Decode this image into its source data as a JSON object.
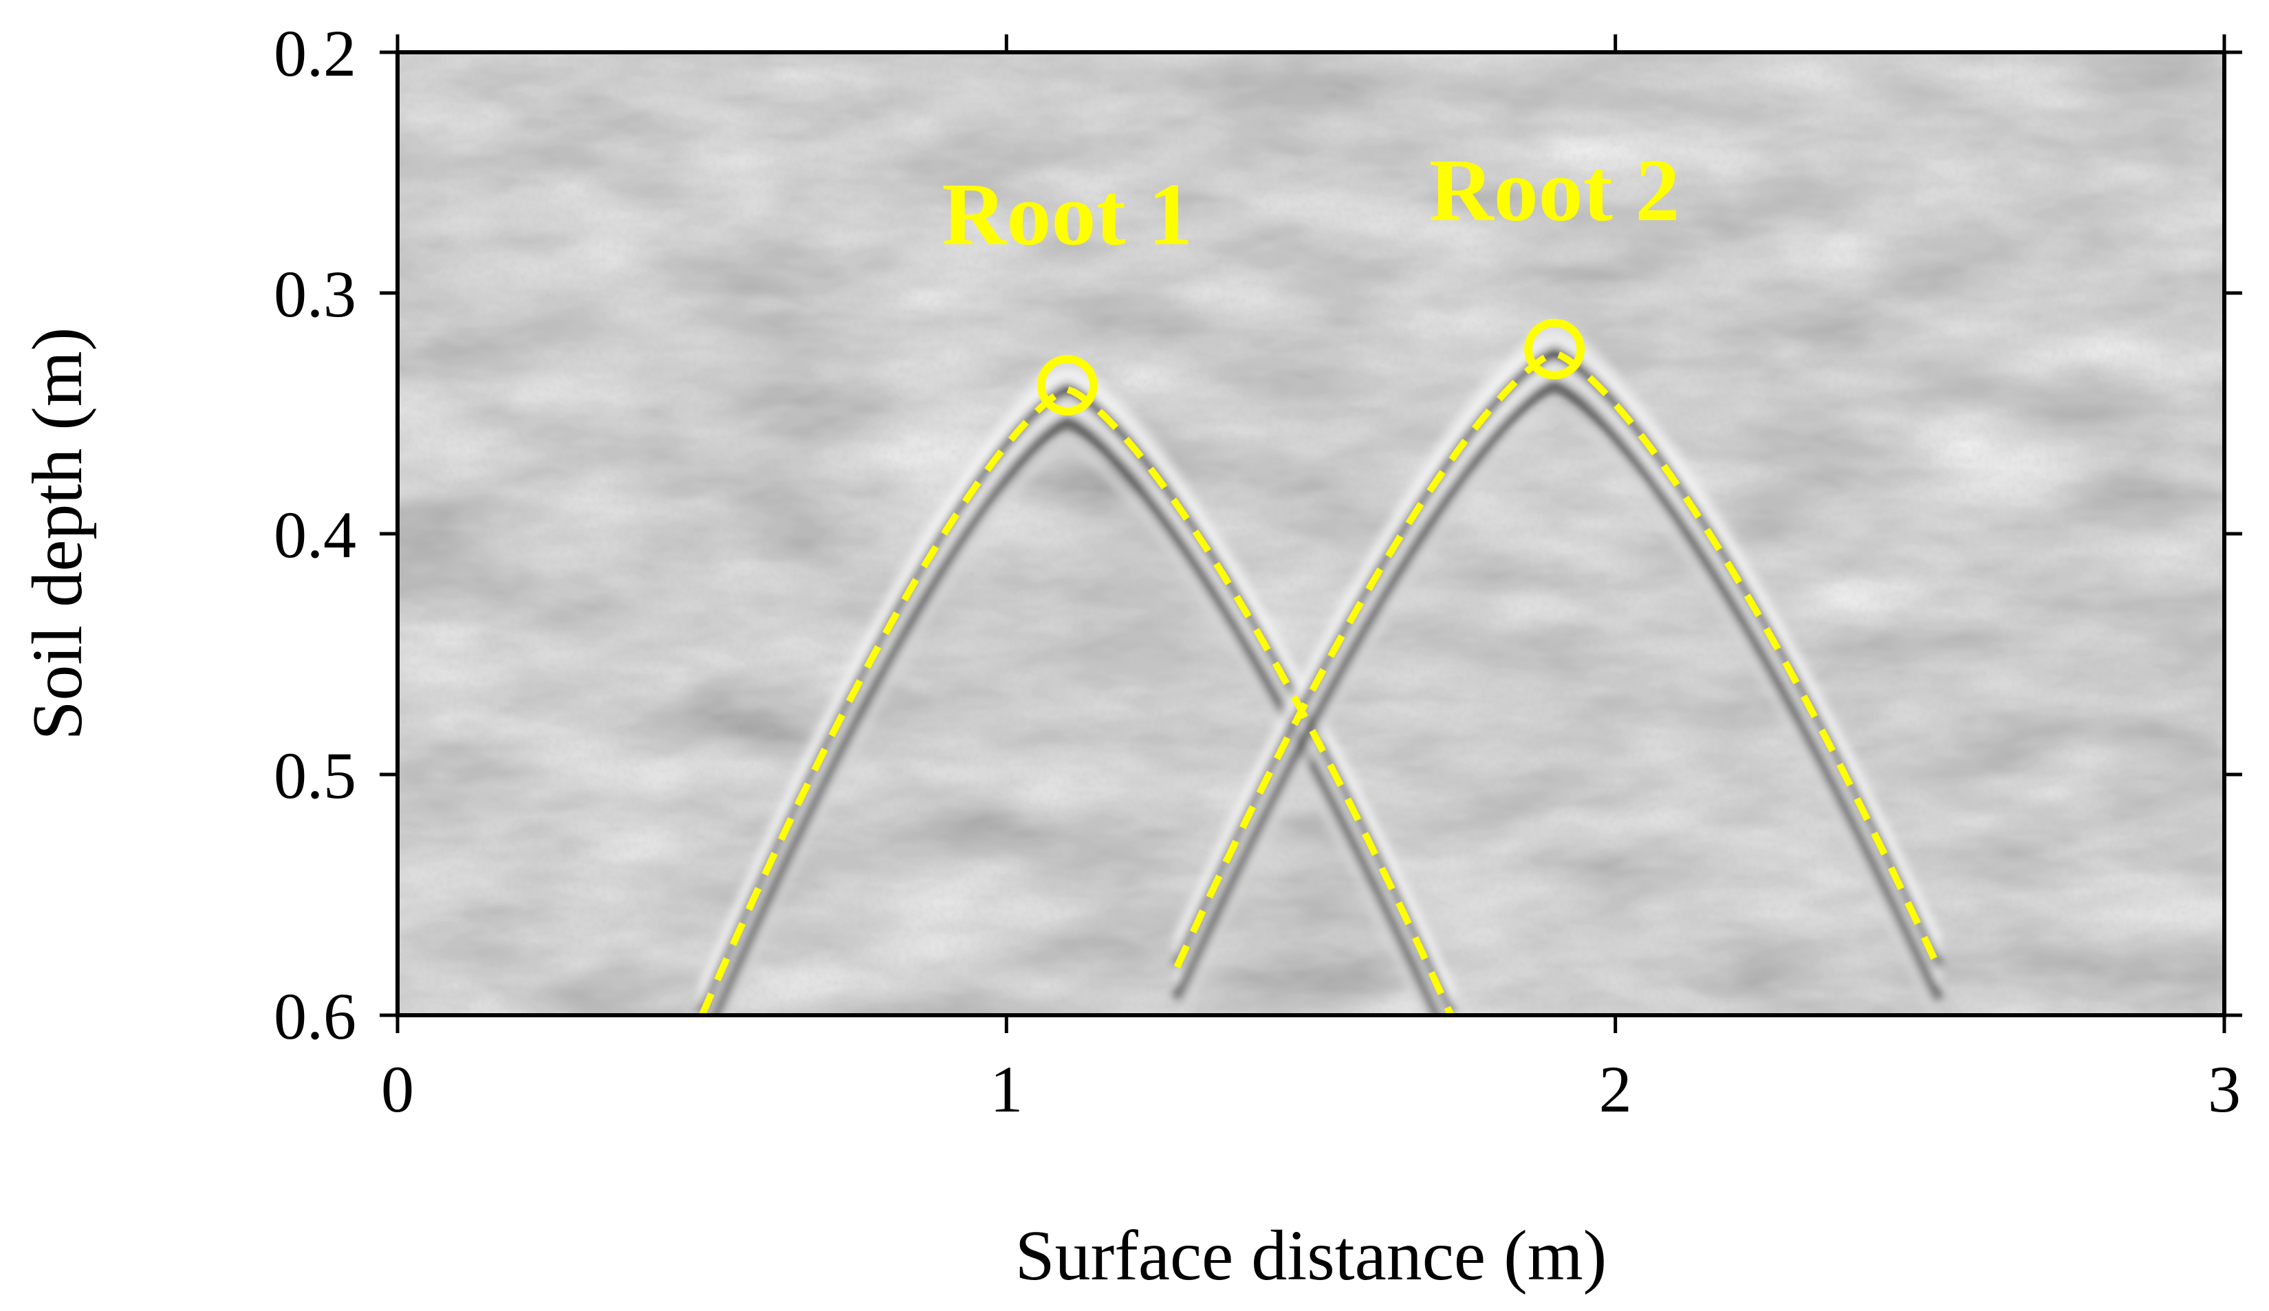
{
  "chart_data": {
    "type": "scatter",
    "title": "",
    "xlabel": "Surface distance (m)",
    "ylabel": "Soil depth (m)",
    "xlim": [
      0,
      3
    ],
    "ylim": [
      0.2,
      0.6
    ],
    "y_inverted": true,
    "xticks": [
      0,
      1,
      2,
      3
    ],
    "xtick_labels": [
      "0",
      "1",
      "2",
      "3"
    ],
    "yticks": [
      0.2,
      0.3,
      0.4,
      0.5,
      0.6
    ],
    "ytick_labels": [
      "0.2",
      "0.3",
      "0.4",
      "0.5",
      "0.6"
    ],
    "grid": false,
    "background": "grayscale GPR radargram",
    "series": [
      {
        "name": "Root 1",
        "apex": {
          "x": 1.1,
          "y": 0.34
        },
        "hyperbola_ends": [
          {
            "x": 0.5,
            "y": 0.6
          },
          {
            "x": 1.73,
            "y": 0.6
          }
        ]
      },
      {
        "name": "Root 2",
        "apex": {
          "x": 1.9,
          "y": 0.325
        },
        "hyperbola_ends": [
          {
            "x": 1.28,
            "y": 0.58
          },
          {
            "x": 2.53,
            "y": 0.58
          }
        ]
      }
    ],
    "annotations": [
      {
        "text": "Root 1",
        "x": 1.1,
        "y": 0.27
      },
      {
        "text": "Root 2",
        "x": 1.9,
        "y": 0.26
      }
    ],
    "colors": {
      "annotation": "#ffff00",
      "axis": "#000000",
      "radargram_base": "#a6a6a6"
    }
  }
}
